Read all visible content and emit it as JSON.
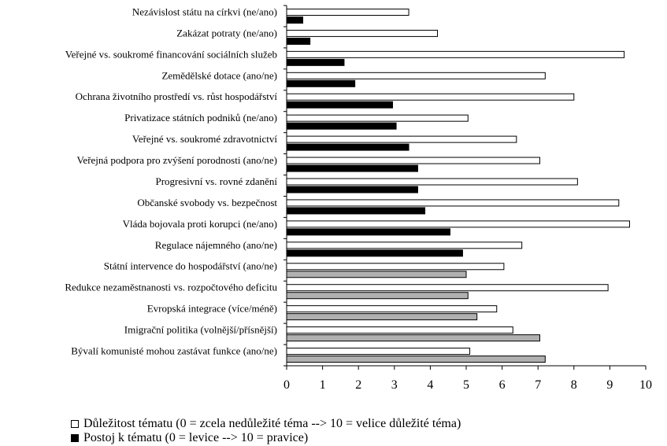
{
  "chart_data": {
    "type": "bar",
    "orientation": "horizontal",
    "categories": [
      "Nezávislost státu na církvi (ne/ano)",
      "Zakázat potraty (ne/ano)",
      "Veřejné vs. soukromé financování sociálních služeb",
      "Zemědělské dotace (ano/ne)",
      "Ochrana životního prostředí vs. růst hospodářství",
      "Privatizace státních podniků (ne/ano)",
      "Veřejné vs. soukromé zdravotnictví",
      "Veřejná podpora pro zvýšení porodnosti (ano/ne)",
      "Progresivní vs. rovné zdanění",
      "Občanské svobody vs. bezpečnost",
      "Vláda bojovala proti korupci (ne/ano)",
      "Regulace nájemného (ano/ne)",
      "Státní intervence do hospodářství (ano/ne)",
      "Redukce nezaměstnanosti vs. rozpočtového deficitu",
      "Evropská integrace (více/méně)",
      "Imigrační politika (volnější/přísnější)",
      "Bývalí komunisté mohou zastávat funkce (ano/ne)"
    ],
    "series": [
      {
        "name": "Důležitost tématu (0 = zcela nedůležité téma --> 10 = velice důležité téma)",
        "values": [
          3.4,
          4.2,
          9.4,
          7.2,
          8.0,
          5.05,
          6.4,
          7.05,
          8.1,
          9.25,
          9.55,
          6.55,
          6.05,
          8.95,
          5.85,
          6.3,
          5.1
        ],
        "colors": [
          "#ffffff"
        ]
      },
      {
        "name": "Postoj k tématu (0 = levice --> 10 = pravice)",
        "values": [
          0.45,
          0.65,
          1.6,
          1.9,
          2.95,
          3.05,
          3.4,
          3.65,
          3.65,
          3.85,
          4.55,
          4.9,
          5.0,
          5.05,
          5.3,
          7.05,
          7.2
        ],
        "colors": [
          "#000000",
          "#000000",
          "#000000",
          "#000000",
          "#000000",
          "#000000",
          "#000000",
          "#000000",
          "#000000",
          "#000000",
          "#000000",
          "#000000",
          "#b0b0b0",
          "#b0b0b0",
          "#b0b0b0",
          "#b0b0b0",
          "#b0b0b0"
        ]
      }
    ],
    "xticks": [
      "0",
      "1",
      "2",
      "3",
      "4",
      "5",
      "6",
      "7",
      "8",
      "9",
      "10"
    ],
    "xlim": [
      0,
      10
    ],
    "grid": false,
    "legend_position": "bottom-left",
    "legend": [
      "Důležitost tématu (0 = zcela nedůležité téma --> 10 = velice důležité téma)",
      "Postoj k tématu (0 = levice --> 10 = pravice)"
    ],
    "title": "",
    "xlabel": "",
    "ylabel": ""
  }
}
